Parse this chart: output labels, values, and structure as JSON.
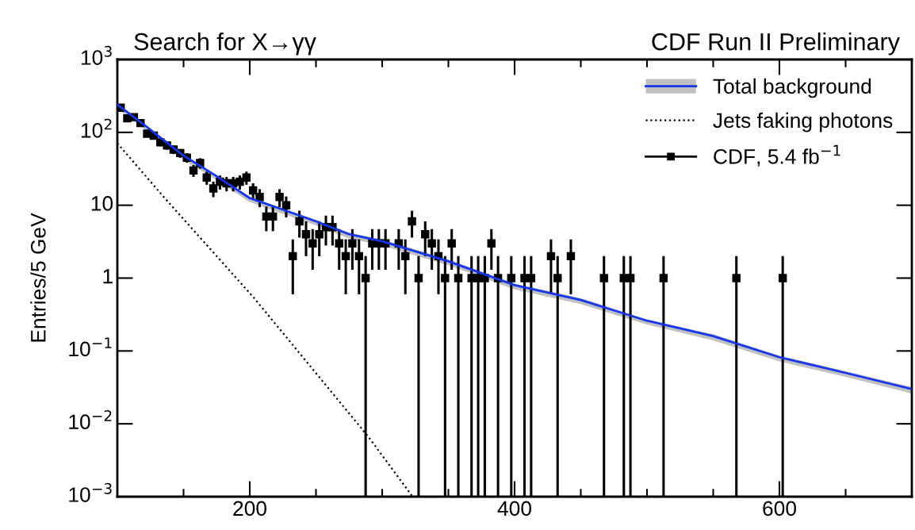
{
  "chart_data": {
    "type": "scatter",
    "title": "Search for X→γγ",
    "ylabel": "Entries/5 GeV",
    "annotations": [
      "CDF Run II Preliminary"
    ],
    "xlim": [
      100,
      700
    ],
    "xticks": [
      200,
      400,
      600
    ],
    "ylim": [
      0.001,
      1000
    ],
    "log": "y",
    "yticks": [
      {
        "value": 0.001,
        "label": "10$^{−3}$"
      },
      {
        "value": 0.01,
        "label": "10$^{−2}$"
      },
      {
        "value": 0.1,
        "label": "10$^{−1}$"
      },
      1,
      10,
      {
        "value": 100,
        "label": "10$^{2}$"
      },
      {
        "value": 1000,
        "label": "10$^{3}$"
      }
    ],
    "grid": false,
    "legend": "top right",
    "series": [
      {
        "name": "Total background",
        "type": "line",
        "color": "#1436f0",
        "line_style": "solid",
        "marker": "none",
        "x": [
          100,
          120,
          150,
          175,
          200,
          225,
          250,
          275,
          300,
          350,
          400,
          450,
          500,
          550,
          600,
          650,
          700
        ],
        "values": [
          240,
          128,
          48,
          25,
          12.5,
          8.7,
          6,
          4,
          3.2,
          1.7,
          0.8,
          0.5,
          0.26,
          0.16,
          0.082,
          0.05,
          0.03
        ],
        "lower": [
          210,
          112,
          42,
          22,
          11,
          7.6,
          5.3,
          3.5,
          2.8,
          1.5,
          0.7,
          0.44,
          0.23,
          0.14,
          0.072,
          0.044,
          0.026
        ],
        "upper": [
          250,
          134,
          50,
          26,
          13.1,
          9.1,
          6.3,
          4.2,
          3.4,
          1.8,
          0.84,
          0.53,
          0.27,
          0.17,
          0.086,
          0.053,
          0.032
        ]
      },
      {
        "name": "Jets faking photons",
        "type": "line",
        "color": "#000000",
        "line_style": "dotted",
        "marker": "none",
        "x": [
          100,
          135,
          203,
          290,
          323
        ],
        "values": [
          71,
          13,
          0.54,
          0.0065,
          0.001
        ]
      },
      {
        "name": "CDF, 5.4 fb$^{−1}$",
        "color": "#000000",
        "marker": "square",
        "x": [
          102.5,
          107.5,
          112.5,
          117.5,
          122.5,
          127.5,
          132.5,
          137.5,
          142.5,
          147.5,
          152.5,
          157.5,
          162.5,
          167.5,
          172.5,
          177.5,
          182.5,
          187.5,
          192.5,
          197.5,
          202.5,
          207.5,
          212.5,
          217.5,
          222.5,
          227.5,
          232.5,
          237.5,
          242.5,
          247.5,
          252.5,
          257.5,
          262.5,
          267.5,
          272.5,
          277.5,
          282.5,
          287.5,
          292.5,
          297.5,
          302.5,
          312.5,
          317.5,
          322.5,
          327.5,
          332.5,
          337.5,
          342.5,
          347.5,
          352.5,
          357.5,
          367.5,
          372.5,
          377.5,
          382.5,
          387.5,
          397.5,
          407.5,
          412.5,
          427.5,
          432.5,
          442.5,
          467.5,
          482.5,
          487.5,
          512.5,
          567.5,
          602.5
        ],
        "values": [
          218,
          156,
          162,
          134,
          96,
          90,
          73,
          66,
          58,
          52,
          45,
          30,
          38,
          24,
          17,
          21,
          20,
          20,
          21,
          24,
          16,
          13,
          7,
          7,
          13,
          10,
          2,
          6,
          4,
          3,
          4,
          5,
          5,
          3,
          2,
          3,
          2,
          1,
          3,
          3,
          3,
          3,
          2,
          6,
          1,
          4,
          3,
          2,
          1,
          3,
          1,
          1,
          1,
          1,
          3,
          1,
          1,
          1,
          1,
          2,
          1,
          2,
          1,
          1,
          1,
          1,
          1,
          1
        ],
        "errors": [
          14.8,
          12.5,
          12.7,
          11.6,
          9.8,
          9.5,
          8.5,
          8.1,
          7.6,
          7.2,
          6.7,
          5.5,
          6.2,
          4.9,
          4.1,
          4.6,
          4.5,
          4.5,
          4.6,
          4.9,
          4,
          3.6,
          2.6,
          2.6,
          3.6,
          3.2,
          1.4,
          2.4,
          2,
          1.7,
          2,
          2.2,
          2.2,
          1.7,
          1.4,
          1.7,
          1.4,
          [
            0.001,
            2
          ],
          1.7,
          1.7,
          1.7,
          1.7,
          1.4,
          2.4,
          [
            0.001,
            2
          ],
          2,
          1.7,
          1.4,
          [
            0.001,
            2
          ],
          1.7,
          [
            0.001,
            2
          ],
          [
            0.001,
            2
          ],
          [
            0.001,
            2
          ],
          [
            0.001,
            2
          ],
          1.7,
          [
            0.001,
            2
          ],
          [
            0.001,
            2
          ],
          [
            0.001,
            2
          ],
          [
            0.001,
            2
          ],
          1.4,
          [
            0.001,
            2
          ],
          1.4,
          [
            0.001,
            2
          ],
          [
            0.001,
            2
          ],
          [
            0.001,
            2
          ],
          [
            0.001,
            2
          ],
          [
            0.001,
            2
          ],
          [
            0.001,
            2
          ]
        ]
      }
    ]
  }
}
